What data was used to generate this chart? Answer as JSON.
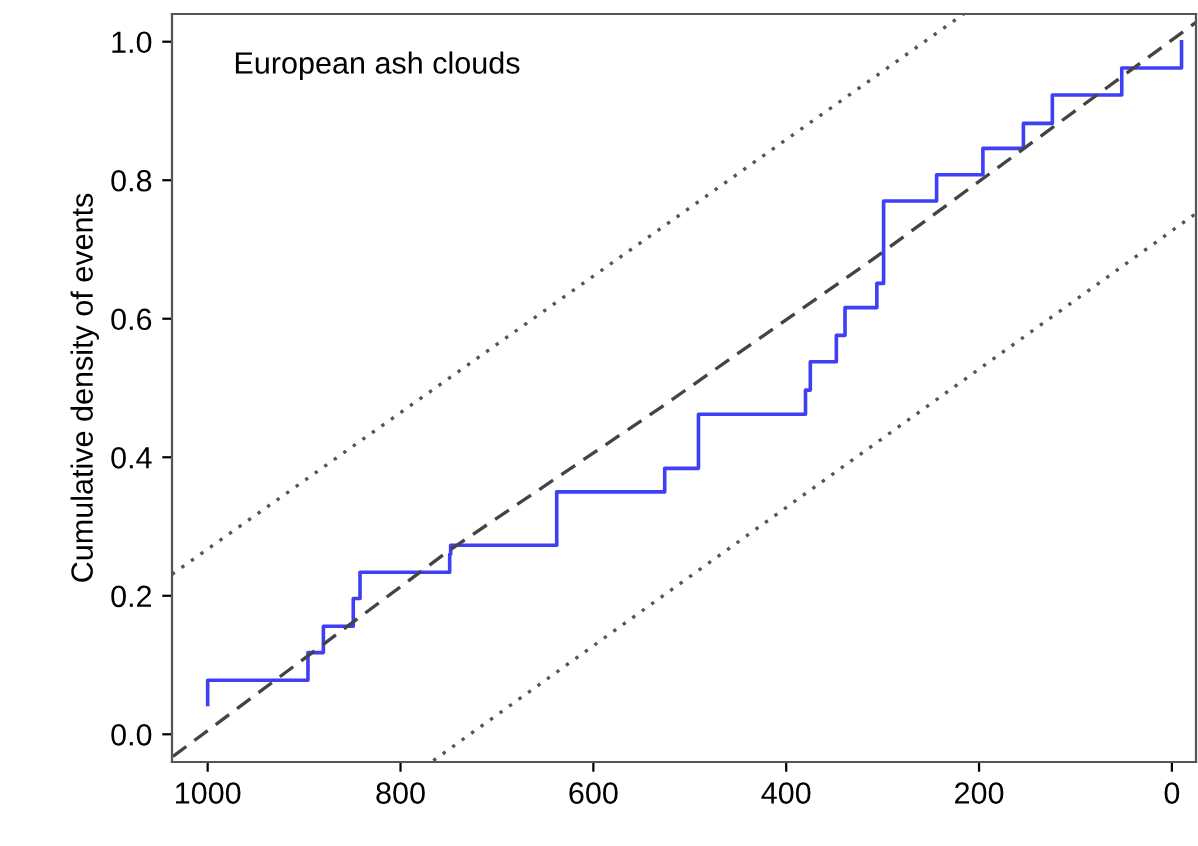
{
  "chart_data": {
    "type": "line",
    "ylabel": "Cumulative density of events",
    "annotations": [
      "European ash clouds"
    ],
    "xlim": [
      1037,
      -25
    ],
    "ylim": [
      -0.04,
      1.04
    ],
    "xticks": [
      1000,
      800,
      600,
      400,
      200,
      0
    ],
    "yticks": [
      {
        "value": 0,
        "label": "0.0"
      },
      {
        "value": 0.2,
        "label": "0.2"
      },
      {
        "value": 0.4,
        "label": "0.4"
      },
      {
        "value": 0.6,
        "label": "0.6"
      },
      {
        "value": 0.8,
        "label": "0.8"
      },
      {
        "value": 1,
        "label": "1.0"
      }
    ],
    "grid": false,
    "series": [
      {
        "type": "step",
        "color": "#3f3ff5",
        "line_style": "solid",
        "x": [
          1000,
          1000,
          896,
          880,
          849,
          842,
          749,
          748,
          638,
          638,
          526,
          491,
          380,
          375,
          348,
          339,
          306,
          299,
          244,
          196,
          154,
          124,
          52,
          -10
        ],
        "values": [
          0.043,
          0.078,
          0.118,
          0.156,
          0.196,
          0.234,
          0.26,
          0.273,
          0.31,
          0.35,
          0.384,
          0.462,
          0.497,
          0.538,
          0.576,
          0.616,
          0.651,
          0.77,
          0.808,
          0.846,
          0.882,
          0.923,
          0.962,
          1.0
        ]
      },
      {
        "color": "#444444",
        "line_style": "dashed",
        "x": [
          1036,
          749,
          531,
          306,
          -25
        ],
        "values": [
          -0.032,
          0.266,
          0.471,
          0.69,
          1.028
        ]
      },
      {
        "color": "#555555",
        "line_style": "dotted",
        "x": [
          1037,
          216
        ],
        "values": [
          0.231,
          1.04
        ]
      },
      {
        "color": "#555555",
        "line_style": "dotted",
        "x": [
          766,
          -25
        ],
        "values": [
          -0.038,
          0.752
        ]
      }
    ]
  }
}
